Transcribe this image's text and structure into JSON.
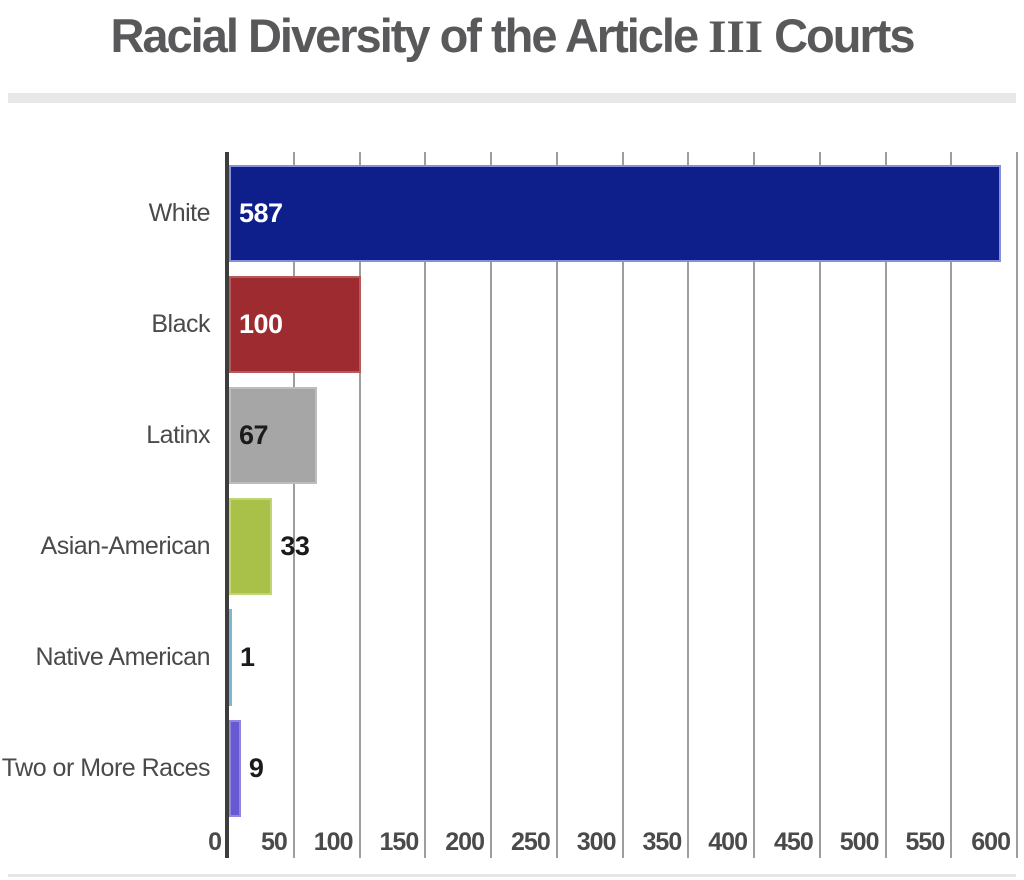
{
  "title": {
    "prefix": "Racial Diversity of the Article ",
    "numeral": "III",
    "suffix": " Courts",
    "full": "Racial Diversity of the Article III Courts",
    "color": "#59595b"
  },
  "chart_data": {
    "type": "bar",
    "orientation": "horizontal",
    "title": "Racial Diversity of the Article III Courts",
    "xlabel": "",
    "ylabel": "",
    "categories": [
      "White",
      "Black",
      "Latinx",
      "Asian-American",
      "Native American",
      "Two or More Races"
    ],
    "values": [
      587,
      100,
      67,
      33,
      1,
      9
    ],
    "value_labels": [
      "587",
      "100",
      "67",
      "33",
      "1",
      "9"
    ],
    "bar_colors": [
      "#0e1f8b",
      "#9d2b30",
      "#a6a6a6",
      "#a9c149",
      "#7db6cd",
      "#6659d2"
    ],
    "bar_border_colors": [
      "#8690d8",
      "#b4595c",
      "#bdbdbd",
      "#c1d476",
      "#7db6cd",
      "#9186e0"
    ],
    "value_label_colors": [
      "#ffffff",
      "#ffffff",
      "#1b1b1b",
      "#1b1b1b",
      "#1b1b1b",
      "#1b1b1b"
    ],
    "xlim": [
      0,
      600
    ],
    "x_ticks": [
      0,
      50,
      100,
      150,
      200,
      250,
      300,
      350,
      400,
      450,
      500,
      550,
      600
    ],
    "grid": true,
    "legend": false,
    "grid_color": "#9e9e9e",
    "axis_color": "#3d3d3d",
    "tick_label_color": "#4a4a4a",
    "category_label_color": "#4a4a4a"
  }
}
